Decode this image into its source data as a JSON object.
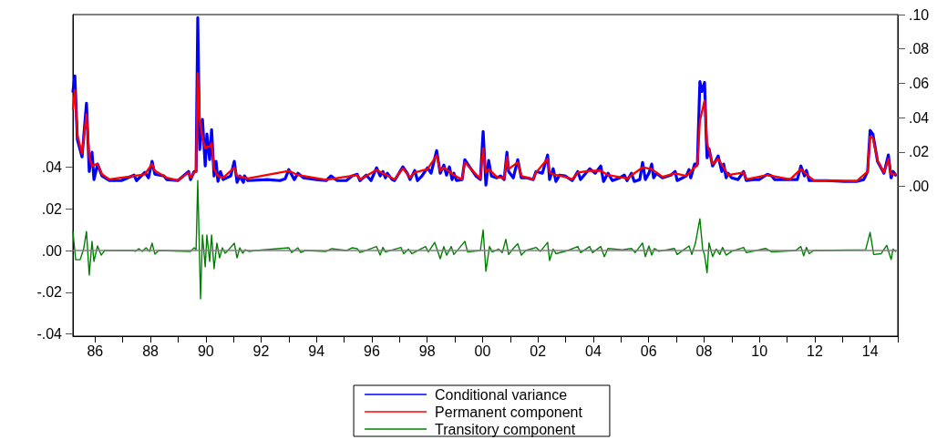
{
  "chart_data": {
    "type": "line",
    "marker": "none",
    "line_style": "solid",
    "legend": "bottom",
    "xlim": [
      1985.2,
      2015.0
    ],
    "xticks": [
      {
        "value": 1986,
        "label": "86"
      },
      {
        "value": 1987,
        "label": null
      },
      {
        "value": 1988,
        "label": "88"
      },
      {
        "value": 1989,
        "label": null
      },
      {
        "value": 1990,
        "label": "90"
      },
      {
        "value": 1991,
        "label": null
      },
      {
        "value": 1992,
        "label": "92"
      },
      {
        "value": 1993,
        "label": null
      },
      {
        "value": 1994,
        "label": "94"
      },
      {
        "value": 1995,
        "label": null
      },
      {
        "value": 1996,
        "label": "96"
      },
      {
        "value": 1997,
        "label": null
      },
      {
        "value": 1998,
        "label": "98"
      },
      {
        "value": 1999,
        "label": null
      },
      {
        "value": 2000,
        "label": "00"
      },
      {
        "value": 2001,
        "label": null
      },
      {
        "value": 2002,
        "label": "02"
      },
      {
        "value": 2003,
        "label": null
      },
      {
        "value": 2004,
        "label": "04"
      },
      {
        "value": 2005,
        "label": null
      },
      {
        "value": 2006,
        "label": "06"
      },
      {
        "value": 2007,
        "label": null
      },
      {
        "value": 2008,
        "label": "08"
      },
      {
        "value": 2009,
        "label": null
      },
      {
        "value": 2010,
        "label": "10"
      },
      {
        "value": 2011,
        "label": null
      },
      {
        "value": 2012,
        "label": "12"
      },
      {
        "value": 2013,
        "label": null
      },
      {
        "value": 2014,
        "label": "14"
      },
      {
        "value": 2015,
        "label": null
      }
    ],
    "ylim": [
      -0.041,
      0.113
    ],
    "yticks": [
      {
        "value": -0.04,
        "label": "-.04"
      },
      {
        "value": -0.02,
        "label": "-.02"
      },
      {
        "value": 0,
        "label": ".00"
      },
      {
        "value": 0.02,
        "label": ".02"
      },
      {
        "value": 0.04,
        "label": ".04"
      }
    ],
    "y2lim": [
      -0.0873,
      0.1
    ],
    "y2ticks": [
      {
        "value": 0,
        "label": ".00"
      },
      {
        "value": 0.02,
        "label": ".02"
      },
      {
        "value": 0.04,
        "label": ".04"
      },
      {
        "value": 0.06,
        "label": ".06"
      },
      {
        "value": 0.08,
        "label": ".08"
      },
      {
        "value": 0.1,
        "label": ".10"
      }
    ],
    "ref_lines": [
      {
        "axis": "y",
        "value": 0,
        "color": "#808080"
      }
    ],
    "series": [
      {
        "name": "Conditional variance",
        "color": "#0000ff",
        "axis": "y2",
        "x": [
          1985.2,
          1985.27,
          1985.36,
          1985.53,
          1985.69,
          1985.79,
          1985.89,
          1985.96,
          1986.09,
          1986.25,
          1986.52,
          1986.95,
          1987.41,
          1987.5,
          1987.8,
          1987.93,
          1988.06,
          1988.16,
          1988.49,
          1988.59,
          1988.99,
          1989.38,
          1989.45,
          1989.58,
          1989.65,
          1989.71,
          1989.78,
          1989.88,
          1989.98,
          1990.04,
          1990.14,
          1990.21,
          1990.3,
          1990.37,
          1990.44,
          1990.53,
          1990.63,
          1990.9,
          1991.03,
          1991.13,
          1991.23,
          1991.36,
          1991.4,
          1991.52,
          1992.22,
          1992.68,
          1992.87,
          1993.0,
          1993.2,
          1993.33,
          1993.53,
          1993.99,
          1994.35,
          1994.52,
          1994.75,
          1995.08,
          1995.28,
          1995.47,
          1995.57,
          1995.8,
          1995.97,
          1996.17,
          1996.3,
          1996.4,
          1996.49,
          1996.56,
          1996.73,
          1996.82,
          1997.12,
          1997.28,
          1997.38,
          1997.55,
          1997.65,
          1997.81,
          1998.01,
          1998.14,
          1998.34,
          1998.47,
          1998.6,
          1998.7,
          1998.8,
          1998.9,
          1998.96,
          1999.06,
          1999.26,
          1999.36,
          1999.53,
          1999.76,
          1999.92,
          2000.02,
          2000.12,
          2000.22,
          2000.32,
          2000.51,
          2000.65,
          2000.78,
          2000.88,
          2000.94,
          2001.11,
          2001.27,
          2001.4,
          2001.6,
          2001.83,
          2001.93,
          2002.16,
          2002.35,
          2002.42,
          2002.55,
          2002.65,
          2002.78,
          2002.98,
          2003.24,
          2003.44,
          2003.54,
          2003.67,
          2003.87,
          2004.07,
          2004.27,
          2004.37,
          2004.53,
          2004.69,
          2004.96,
          2005.12,
          2005.22,
          2005.38,
          2005.48,
          2005.68,
          2005.78,
          2005.88,
          2006.01,
          2006.11,
          2006.18,
          2006.28,
          2006.5,
          2006.8,
          2006.96,
          2007.03,
          2007.36,
          2007.46,
          2007.52,
          2007.66,
          2007.76,
          2007.85,
          2007.92,
          2008.02,
          2008.08,
          2008.11,
          2008.18,
          2008.31,
          2008.41,
          2008.51,
          2008.64,
          2008.71,
          2008.8,
          2008.87,
          2009.0,
          2009.23,
          2009.43,
          2009.53,
          2009.79,
          2009.99,
          2010.29,
          2010.45,
          2010.55,
          2010.78,
          2011.11,
          2011.37,
          2011.5,
          2011.63,
          2011.7,
          2011.8,
          2011.96,
          2012.42,
          2013.08,
          2013.51,
          2013.77,
          2013.91,
          2014.0,
          2014.1,
          2014.27,
          2014.5,
          2014.66,
          2014.76,
          2014.83,
          2014.92
        ],
        "values": [
          0.0552,
          0.0643,
          0.0272,
          0.0171,
          0.0483,
          0.0086,
          0.0198,
          0.0039,
          0.0129,
          0.006,
          0.0033,
          0.0033,
          0.0065,
          0.0033,
          0.0081,
          0.0049,
          0.0145,
          0.007,
          0.006,
          0.0039,
          0.0033,
          0.0086,
          0.0039,
          0.0086,
          0.0086,
          0.0982,
          0.0214,
          0.0389,
          0.0118,
          0.0304,
          0.0155,
          0.033,
          0.006,
          0.0145,
          0.0028,
          0.0086,
          0.0039,
          0.006,
          0.0145,
          0.0023,
          0.006,
          0.0023,
          0.006,
          0.0033,
          0.0039,
          0.0033,
          0.0044,
          0.0097,
          0.0039,
          0.0076,
          0.0049,
          0.0039,
          0.0033,
          0.006,
          0.0033,
          0.0033,
          0.006,
          0.007,
          0.0033,
          0.0065,
          0.0033,
          0.0108,
          0.006,
          0.0086,
          0.0049,
          0.0076,
          0.0039,
          0.0033,
          0.0113,
          0.0076,
          0.0039,
          0.0092,
          0.0033,
          0.006,
          0.0108,
          0.0076,
          0.0208,
          0.0076,
          0.0123,
          0.0065,
          0.0113,
          0.0039,
          0.0076,
          0.0033,
          0.0039,
          0.0155,
          0.0113,
          0.006,
          0.0039,
          0.0319,
          0.0007,
          0.015,
          0.006,
          0.0049,
          0.006,
          0.0039,
          0.0198,
          0.0086,
          0.0049,
          0.0155,
          0.0049,
          0.0049,
          0.0039,
          0.0086,
          0.0076,
          0.0182,
          0.0039,
          0.0102,
          0.0028,
          0.0065,
          0.006,
          0.0033,
          0.0086,
          0.0039,
          0.0065,
          0.0102,
          0.0076,
          0.0118,
          0.0028,
          0.0076,
          0.0033,
          0.0049,
          0.0065,
          0.0033,
          0.0076,
          0.0028,
          0.0039,
          0.0139,
          0.0039,
          0.0076,
          0.0129,
          0.0049,
          0.0076,
          0.0049,
          0.0065,
          0.0086,
          0.0033,
          0.006,
          0.0097,
          0.0049,
          0.0129,
          0.0129,
          0.061,
          0.0552,
          0.0605,
          0.0287,
          0.0166,
          0.0219,
          0.0118,
          0.0145,
          0.0177,
          0.0086,
          0.0129,
          0.0049,
          0.0076,
          0.0049,
          0.0039,
          0.0086,
          0.0033,
          0.0039,
          0.0039,
          0.007,
          0.006,
          0.0039,
          0.0039,
          0.0039,
          0.0039,
          0.0118,
          0.006,
          0.0092,
          0.0033,
          0.0033,
          0.0033,
          0.0028,
          0.0028,
          0.0039,
          0.0086,
          0.0325,
          0.0304,
          0.0145,
          0.0076,
          0.0182,
          0.0049,
          0.0086,
          0.0065
        ]
      },
      {
        "name": "Permanent component",
        "color": "#ff0000",
        "axis": "y2",
        "x": [
          1985.2,
          1985.27,
          1985.36,
          1985.53,
          1985.69,
          1985.79,
          1985.89,
          1986.09,
          1986.25,
          1986.52,
          1987.41,
          1987.8,
          1988.06,
          1988.16,
          1988.59,
          1988.99,
          1989.38,
          1989.45,
          1989.58,
          1989.65,
          1989.71,
          1989.78,
          1989.88,
          1989.98,
          1990.04,
          1990.14,
          1990.21,
          1990.3,
          1990.44,
          1990.63,
          1991.03,
          1991.13,
          1991.52,
          1993.0,
          1993.33,
          1994.35,
          1995.47,
          1995.57,
          1996.17,
          1996.4,
          1996.82,
          1997.12,
          1997.38,
          1997.55,
          1998.01,
          1998.34,
          1998.47,
          1998.6,
          1998.96,
          1999.26,
          1999.36,
          1999.76,
          1999.92,
          2000.02,
          2000.12,
          2000.22,
          2000.51,
          2000.78,
          2000.88,
          2000.94,
          2001.27,
          2001.4,
          2001.83,
          2001.93,
          2002.35,
          2002.42,
          2002.55,
          2002.98,
          2003.24,
          2003.44,
          2003.87,
          2004.27,
          2004.53,
          2005.22,
          2005.78,
          2006.11,
          2006.5,
          2006.96,
          2007.36,
          2007.66,
          2007.76,
          2007.85,
          2008.02,
          2008.11,
          2008.31,
          2008.51,
          2008.71,
          2008.87,
          2009.43,
          2009.53,
          2010.29,
          2011.11,
          2011.5,
          2011.7,
          2011.96,
          2013.51,
          2013.91,
          2014.0,
          2014.1,
          2014.27,
          2014.5,
          2014.66,
          2014.76,
          2014.92
        ],
        "values": [
          0.045,
          0.056,
          0.03,
          0.019,
          0.042,
          0.017,
          0.012,
          0.013,
          0.007,
          0.004,
          0.006,
          0.007,
          0.013,
          0.009,
          0.005,
          0.0035,
          0.008,
          0.005,
          0.008,
          0.0085,
          0.0658,
          0.0394,
          0.028,
          0.022,
          0.023,
          0.023,
          0.025,
          0.01,
          0.006,
          0.005,
          0.011,
          0.006,
          0.0045,
          0.009,
          0.0065,
          0.0038,
          0.0065,
          0.004,
          0.0095,
          0.0075,
          0.004,
          0.0105,
          0.005,
          0.008,
          0.01,
          0.018,
          0.009,
          0.011,
          0.0065,
          0.004,
          0.014,
          0.007,
          0.0045,
          0.022,
          0.008,
          0.01,
          0.0055,
          0.0045,
          0.017,
          0.01,
          0.014,
          0.006,
          0.004,
          0.008,
          0.016,
          0.008,
          0.007,
          0.0055,
          0.004,
          0.008,
          0.009,
          0.009,
          0.0065,
          0.0045,
          0.011,
          0.01,
          0.0055,
          0.0075,
          0.006,
          0.011,
          0.012,
          0.038,
          0.05,
          0.0251,
          0.013,
          0.016,
          0.011,
          0.0065,
          0.008,
          0.004,
          0.0065,
          0.004,
          0.01,
          0.007,
          0.0035,
          0.003,
          0.0085,
          0.029,
          0.028,
          0.015,
          0.008,
          0.016,
          0.007,
          0.007
        ]
      },
      {
        "name": "Transitory component",
        "color": "#008000",
        "x": [
          1985.2,
          1985.3,
          1985.46,
          1985.59,
          1985.69,
          1985.79,
          1985.89,
          1985.96,
          1986.09,
          1986.22,
          1986.35,
          1987.41,
          1987.45,
          1987.58,
          1987.71,
          1987.84,
          1987.97,
          1988.06,
          1988.16,
          1988.3,
          1989.45,
          1989.58,
          1989.65,
          1989.71,
          1989.81,
          1989.88,
          1989.98,
          1990.04,
          1990.14,
          1990.21,
          1990.3,
          1990.4,
          1990.5,
          1990.6,
          1990.7,
          1990.8,
          1991.03,
          1991.13,
          1991.23,
          1991.33,
          1991.43,
          1991.56,
          1991.8,
          1993.0,
          1993.1,
          1993.33,
          1993.43,
          1993.6,
          1994.35,
          1994.55,
          1995.08,
          1995.28,
          1995.47,
          1995.57,
          1995.7,
          1996.17,
          1996.3,
          1996.4,
          1996.49,
          1997.05,
          1997.15,
          1997.32,
          1997.45,
          1997.94,
          1998.04,
          1998.27,
          1998.47,
          1998.6,
          1998.7,
          1998.87,
          1998.96,
          1999.13,
          1999.36,
          1999.46,
          1999.92,
          2000.02,
          2000.12,
          2000.25,
          2000.35,
          2000.58,
          2000.71,
          2000.84,
          2000.94,
          2001.11,
          2001.27,
          2001.4,
          2001.56,
          2001.93,
          2002.09,
          2002.35,
          2002.42,
          2002.55,
          2002.65,
          2003.08,
          2003.44,
          2003.54,
          2003.87,
          2003.97,
          2004.27,
          2004.4,
          2004.53,
          2005.05,
          2005.38,
          2005.51,
          2005.78,
          2005.88,
          2006.01,
          2006.11,
          2006.21,
          2006.37,
          2006.93,
          2007.03,
          2007.46,
          2007.56,
          2007.69,
          2007.85,
          2007.95,
          2008.02,
          2008.11,
          2008.18,
          2008.31,
          2008.44,
          2008.57,
          2008.67,
          2008.8,
          2009.0,
          2009.43,
          2009.53,
          2010.22,
          2010.45,
          2011.31,
          2011.5,
          2011.6,
          2011.7,
          2011.8,
          2011.96,
          2013.84,
          2014.0,
          2014.13,
          2014.4,
          2014.6,
          2014.76,
          2014.83,
          2014.92
        ],
        "values": [
          0.0091,
          -0.0044,
          -0.0044,
          0.0009,
          0.0091,
          -0.0117,
          0.0044,
          -0.0052,
          0.0022,
          -0.0022,
          0.0,
          0.0,
          -0.0004,
          0.0009,
          -0.0004,
          0.0013,
          -0.0004,
          0.0035,
          -0.0017,
          0.0,
          -0.0004,
          0.0013,
          0.0004,
          0.0335,
          -0.0231,
          0.0074,
          -0.0078,
          0.0074,
          -0.0052,
          0.0074,
          -0.0087,
          0.0035,
          -0.0035,
          0.0013,
          -0.0013,
          0.0,
          0.0035,
          -0.0035,
          0.0013,
          -0.0013,
          0.0004,
          -0.0004,
          0.0,
          0.0013,
          -0.0009,
          0.0013,
          -0.0009,
          0.0,
          -0.0004,
          0.0009,
          0.0,
          0.0013,
          0.0009,
          -0.0009,
          -0.0004,
          0.0019,
          -0.0022,
          0.0015,
          -0.0007,
          0.0015,
          -0.0015,
          0.0007,
          -0.0015,
          0.0019,
          -0.0007,
          0.0039,
          -0.0039,
          0.0019,
          -0.0022,
          0.0019,
          -0.0019,
          0.0007,
          0.0044,
          -0.0007,
          0.0,
          0.0099,
          -0.0099,
          0.0019,
          -0.0007,
          0.0007,
          -0.001,
          0.0054,
          -0.0019,
          0.001,
          0.0033,
          -0.0022,
          0.0,
          0.0015,
          -0.0004,
          0.0039,
          -0.0048,
          0.0007,
          -0.0015,
          0.0,
          0.0019,
          -0.001,
          0.0019,
          -0.001,
          0.0019,
          -0.0029,
          0.001,
          0.0004,
          0.001,
          -0.001,
          0.0036,
          -0.0029,
          0.0022,
          -0.0022,
          0.001,
          -0.0004,
          0.001,
          -0.0019,
          0.0022,
          -0.0019,
          0.0036,
          0.0152,
          0.0007,
          -0.0022,
          -0.0106,
          0.0036,
          -0.0029,
          0.0007,
          -0.0019,
          0.0015,
          -0.0022,
          -0.0004,
          0.0015,
          -0.001,
          0.001,
          -0.0007,
          0.0,
          0.0019,
          -0.0025,
          0.0015,
          -0.0015,
          0.0,
          0.0004,
          0.0087,
          -0.0019,
          -0.0015,
          0.0025,
          -0.0043,
          0.0007,
          -0.0004
        ]
      }
    ]
  }
}
